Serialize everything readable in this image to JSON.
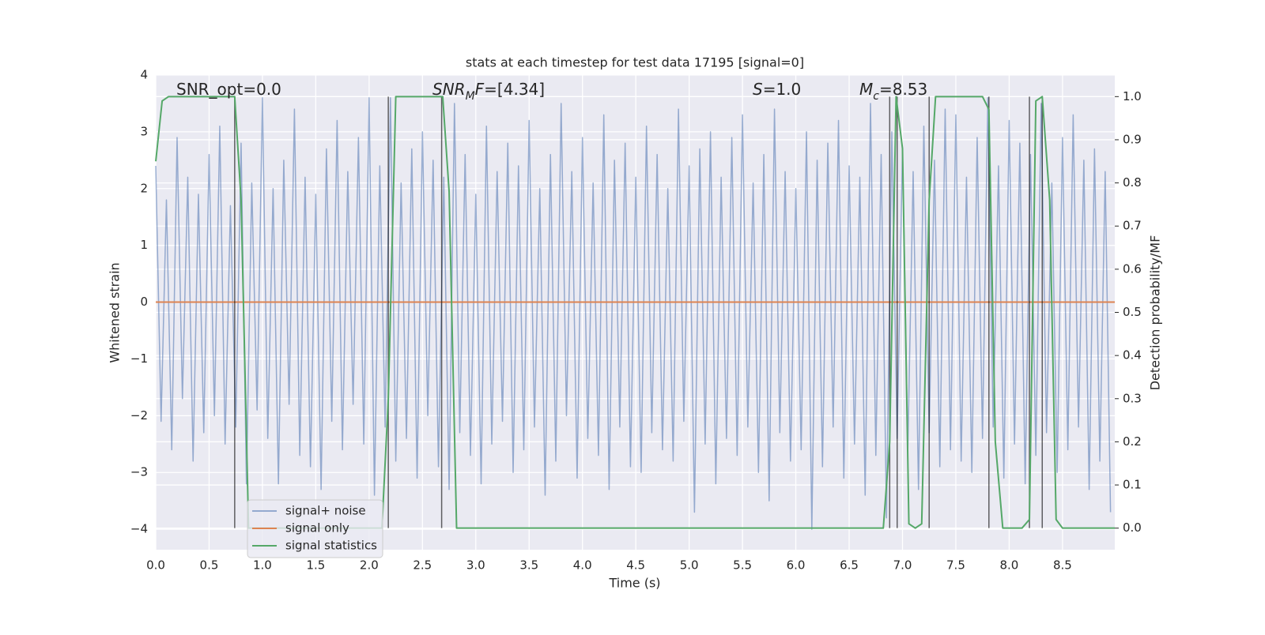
{
  "chart_data": {
    "type": "line",
    "title": "stats at each timestep for test data 17195 [signal=0]",
    "xlabel": "Time (s)",
    "ylabel": "Whitened strain",
    "y2label": "Detection probability/MF",
    "xlim": [
      0,
      8.99
    ],
    "ylim": [
      -4.36,
      4.0
    ],
    "y2lim": [
      -0.05,
      1.05
    ],
    "xticks": [
      {
        "value": 0,
        "label": "0.0"
      },
      0.5,
      {
        "value": 1,
        "label": "1.0"
      },
      1.5,
      {
        "value": 2,
        "label": "2.0"
      },
      2.5,
      {
        "value": 3,
        "label": "3.0"
      },
      3.5,
      {
        "value": 4,
        "label": "4.0"
      },
      4.5,
      {
        "value": 5,
        "label": "5.0"
      },
      5.5,
      {
        "value": 6,
        "label": "6.0"
      },
      6.5,
      {
        "value": 7,
        "label": "7.0"
      },
      7.5,
      {
        "value": 8,
        "label": "8.0"
      },
      8.5
    ],
    "yticks": [
      {
        "value": -4,
        "label": "−4"
      },
      {
        "value": -3,
        "label": "−3"
      },
      {
        "value": -2,
        "label": "−2"
      },
      {
        "value": -1,
        "label": "−1"
      },
      0,
      1,
      2,
      3,
      4
    ],
    "y2ticks": [
      {
        "value": 0,
        "label": "0.0"
      },
      0.1,
      0.2,
      0.3,
      0.4,
      0.5,
      0.6,
      0.7,
      0.8,
      0.9,
      {
        "value": 1,
        "label": "1.0"
      }
    ],
    "grid": true,
    "series": [
      {
        "name": "signal+ noise",
        "color": "#4c72b0",
        "x": [
          0,
          0.05,
          0.1,
          0.15,
          0.2,
          0.25,
          0.3,
          0.35,
          0.4,
          0.45,
          0.5,
          0.55,
          0.6,
          0.65,
          0.7,
          0.75,
          0.8,
          0.85,
          0.9,
          0.95,
          1,
          1.05,
          1.1,
          1.15,
          1.2,
          1.25,
          1.3,
          1.35,
          1.4,
          1.45,
          1.5,
          1.55,
          1.6,
          1.65,
          1.7,
          1.75,
          1.8,
          1.85,
          1.9,
          1.95,
          2,
          2.05,
          2.1,
          2.15,
          2.2,
          2.25,
          2.3,
          2.35,
          2.4,
          2.45,
          2.5,
          2.55,
          2.6,
          2.65,
          2.7,
          2.75,
          2.8,
          2.85,
          2.9,
          2.95,
          3,
          3.05,
          3.1,
          3.15,
          3.2,
          3.25,
          3.3,
          3.35,
          3.4,
          3.45,
          3.5,
          3.55,
          3.6,
          3.65,
          3.7,
          3.75,
          3.8,
          3.85,
          3.9,
          3.95,
          4,
          4.05,
          4.1,
          4.15,
          4.2,
          4.25,
          4.3,
          4.35,
          4.4,
          4.45,
          4.5,
          4.55,
          4.6,
          4.65,
          4.7,
          4.75,
          4.8,
          4.85,
          4.9,
          4.95,
          5,
          5.05,
          5.1,
          5.15,
          5.2,
          5.25,
          5.3,
          5.35,
          5.4,
          5.45,
          5.5,
          5.55,
          5.6,
          5.65,
          5.7,
          5.75,
          5.8,
          5.85,
          5.9,
          5.95,
          6,
          6.05,
          6.1,
          6.15,
          6.2,
          6.25,
          6.3,
          6.35,
          6.4,
          6.45,
          6.5,
          6.55,
          6.6,
          6.65,
          6.7,
          6.75,
          6.8,
          6.85,
          6.9,
          6.95,
          7,
          7.05,
          7.1,
          7.15,
          7.2,
          7.25,
          7.3,
          7.35,
          7.4,
          7.45,
          7.5,
          7.55,
          7.6,
          7.65,
          7.7,
          7.75,
          7.8,
          7.85,
          7.9,
          7.95,
          8,
          8.05,
          8.1,
          8.15,
          8.2,
          8.25,
          8.3,
          8.35,
          8.4,
          8.45,
          8.5,
          8.55,
          8.6,
          8.65,
          8.7,
          8.75,
          8.8,
          8.85,
          8.9,
          8.95
        ],
        "values": [
          2.4,
          -2.1,
          1.8,
          -2.6,
          2.9,
          -1.7,
          2.2,
          -2.8,
          1.9,
          -2.3,
          2.6,
          -2.0,
          3.1,
          -2.5,
          1.7,
          -2.2,
          2.8,
          -3.2,
          2.1,
          -1.9,
          3.6,
          -2.4,
          2.0,
          -3.2,
          2.5,
          -1.8,
          3.4,
          -2.7,
          2.2,
          -2.9,
          1.9,
          -3.3,
          2.7,
          -2.1,
          3.2,
          -2.6,
          2.3,
          -1.8,
          2.9,
          -2.5,
          3.6,
          -3.4,
          2.4,
          -2.2,
          3.6,
          -2.8,
          2.1,
          -2.4,
          2.7,
          -3.1,
          3.0,
          -2.0,
          2.5,
          -2.9,
          2.2,
          -3.3,
          3.5,
          -2.3,
          2.6,
          -2.7,
          1.9,
          -3.2,
          3.1,
          -2.5,
          2.3,
          -2.1,
          2.8,
          -3.0,
          2.4,
          -2.6,
          3.2,
          -2.2,
          2.0,
          -3.4,
          2.6,
          -2.8,
          3.5,
          -2.0,
          2.3,
          -3.1,
          2.9,
          -2.4,
          2.1,
          -2.7,
          3.3,
          -3.3,
          2.5,
          -2.2,
          2.8,
          -2.9,
          2.2,
          -3.0,
          3.1,
          -2.3,
          2.6,
          -2.6,
          2.0,
          -2.8,
          3.4,
          -2.1,
          2.4,
          -3.7,
          2.7,
          -2.5,
          3.0,
          -3.2,
          2.2,
          -2.4,
          2.9,
          -2.7,
          3.3,
          -2.2,
          2.1,
          -3.0,
          2.6,
          -3.5,
          3.4,
          -2.3,
          2.3,
          -2.8,
          2.0,
          -2.6,
          3.0,
          -4.0,
          2.5,
          -2.9,
          2.8,
          -2.2,
          3.2,
          -3.1,
          2.4,
          -2.5,
          2.2,
          -3.4,
          3.5,
          -2.7,
          2.6,
          -3.8,
          3.0,
          -2.4,
          2.7,
          -2.6,
          2.3,
          -3.3,
          3.1,
          -2.3,
          2.5,
          -2.9,
          3.4,
          -2.6,
          3.3,
          -2.8,
          2.2,
          -3.0,
          2.9,
          -2.4,
          3.6,
          -2.2,
          2.4,
          -3.1,
          3.2,
          -2.5,
          2.8,
          -3.2,
          2.6,
          -2.7,
          3.5,
          -2.3,
          2.1,
          -3.0,
          2.9,
          -2.6,
          3.3,
          -2.2,
          2.5,
          -3.3,
          2.7,
          -2.8,
          2.3,
          -3.7
        ]
      },
      {
        "name": "signal only",
        "color": "#dd8452",
        "x": [
          0,
          8.99
        ],
        "values": [
          0,
          0
        ]
      },
      {
        "name": "signal statistics",
        "color": "#55a868",
        "axis": "y2",
        "x": [
          0,
          0.06,
          0.12,
          0.6,
          0.74,
          0.8,
          0.87,
          2.12,
          2.18,
          2.25,
          2.69,
          2.75,
          2.82,
          6.82,
          6.88,
          6.94,
          7.0,
          7.06,
          7.12,
          7.18,
          7.25,
          7.31,
          7.75,
          7.81,
          7.87,
          7.94,
          8.12,
          8.19,
          8.25,
          8.31,
          8.38,
          8.44,
          8.5,
          8.99
        ],
        "values": [
          0.85,
          0.99,
          1.0,
          1.0,
          1.0,
          0.76,
          0.0,
          0.0,
          0.3,
          1.0,
          1.0,
          0.78,
          0.0,
          0.0,
          0.2,
          1.0,
          0.88,
          0.01,
          0.0,
          0.01,
          0.76,
          1.0,
          1.0,
          0.97,
          0.2,
          0.0,
          0.0,
          0.02,
          0.99,
          1.0,
          0.76,
          0.02,
          0.0,
          0.0
        ]
      }
    ],
    "detections": [
      0.74,
      2.18,
      2.68,
      6.88,
      6.95,
      7.25,
      7.81,
      8.19,
      8.31
    ],
    "annotations": [
      {
        "parts": [
          {
            "t": "SNR_opt=0.0"
          }
        ]
      },
      {
        "parts": [
          {
            "t": "SNR",
            "style": "italic"
          },
          {
            "t": "M",
            "style": "sub"
          },
          {
            "t": "F",
            "style": "italic"
          },
          {
            "t": "=[4.34]"
          }
        ]
      },
      {
        "parts": [
          {
            "t": "S",
            "style": "italic"
          },
          {
            "t": "=1.0"
          }
        ]
      },
      {
        "parts": [
          {
            "t": "M",
            "style": "italic"
          },
          {
            "t": "c",
            "style": "sub"
          },
          {
            "t": "=8.53"
          }
        ]
      }
    ],
    "legend": "lower left"
  }
}
